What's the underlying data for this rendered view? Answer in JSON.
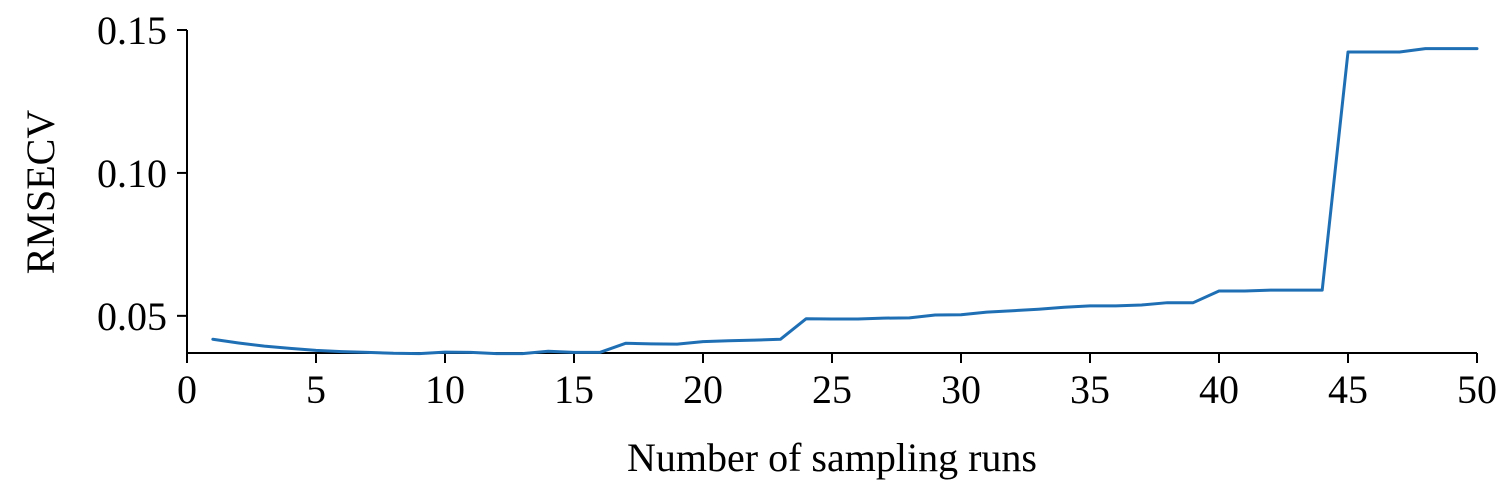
{
  "chart_data": {
    "type": "line",
    "title": "",
    "xlabel": "Number of sampling runs",
    "ylabel": "RMSECV",
    "xlim": [
      0,
      50
    ],
    "ylim": [
      0.037,
      0.15
    ],
    "xticks": [
      0,
      5,
      10,
      15,
      20,
      25,
      30,
      35,
      40,
      45,
      50
    ],
    "xtick_labels": [
      "0",
      "5",
      "10",
      "15",
      "20",
      "25",
      "30",
      "35",
      "40",
      "45",
      "50"
    ],
    "yticks": [
      0.05,
      0.1,
      0.15
    ],
    "ytick_labels": [
      "0.05",
      "0.10",
      "0.15"
    ],
    "grid": false,
    "legend": "none",
    "series": [
      {
        "color": "#1f6fb5",
        "x": [
          1,
          2,
          3,
          4,
          5,
          6,
          7,
          8,
          9,
          10,
          11,
          12,
          13,
          14,
          15,
          16,
          17,
          18,
          19,
          20,
          21,
          22,
          23,
          24,
          25,
          26,
          27,
          28,
          29,
          30,
          31,
          32,
          33,
          34,
          35,
          36,
          37,
          38,
          39,
          40,
          41,
          42,
          43,
          44,
          45,
          46,
          47,
          48,
          49,
          50
        ],
        "y": [
          0.0418,
          0.0405,
          0.0394,
          0.0386,
          0.0379,
          0.0375,
          0.0372,
          0.0369,
          0.0368,
          0.0373,
          0.0372,
          0.0368,
          0.0368,
          0.0376,
          0.0372,
          0.0372,
          0.0404,
          0.0402,
          0.0401,
          0.041,
          0.0413,
          0.0415,
          0.0418,
          0.049,
          0.0489,
          0.0489,
          0.0492,
          0.0493,
          0.0503,
          0.0504,
          0.0513,
          0.0518,
          0.0523,
          0.053,
          0.0535,
          0.0535,
          0.0538,
          0.0546,
          0.0546,
          0.0587,
          0.0587,
          0.059,
          0.059,
          0.059,
          0.1423,
          0.1423,
          0.1423,
          0.1435,
          0.1435,
          0.1435
        ]
      }
    ]
  }
}
